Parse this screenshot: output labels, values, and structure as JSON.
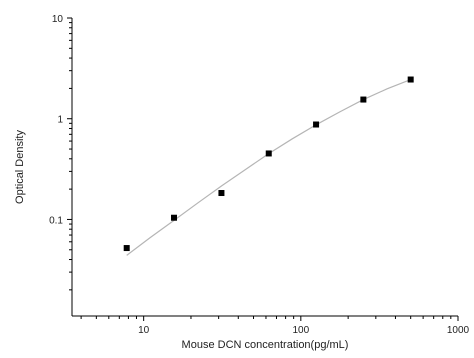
{
  "chart_data": {
    "type": "scatter",
    "xlabel": "Mouse DCN concentration(pg/mL)",
    "ylabel": "Optical Density",
    "x_scale": "log",
    "y_scale": "log",
    "xlim": [
      3.5,
      1000
    ],
    "ylim": [
      0.011,
      10
    ],
    "x_tick_labels": [
      "10",
      "100",
      "1000"
    ],
    "y_tick_labels": [
      "10",
      "1",
      "0.1"
    ],
    "grid": false,
    "series": [
      {
        "marker": "square",
        "color": "#000000",
        "x": [
          7.8,
          15.6,
          31.25,
          62.5,
          125,
          250,
          500
        ],
        "y": [
          0.052,
          0.104,
          0.183,
          0.452,
          0.876,
          1.55,
          2.45
        ]
      }
    ],
    "fit_curve": {
      "color": "#b5b5b5",
      "x": [
        7.8,
        11,
        15.6,
        22,
        31.25,
        44,
        62.5,
        88,
        125,
        177,
        250,
        354,
        500
      ],
      "y": [
        0.044,
        0.066,
        0.098,
        0.145,
        0.215,
        0.31,
        0.45,
        0.63,
        0.87,
        1.17,
        1.55,
        1.98,
        2.45
      ]
    }
  }
}
